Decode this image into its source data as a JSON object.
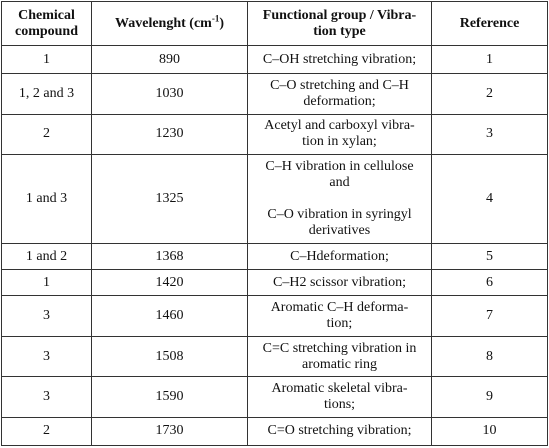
{
  "table": {
    "headers": {
      "compound_line1": "Chemical",
      "compound_line2": "compound",
      "wavelength": "Wavelenght (cm",
      "wavelength_sup": "-1",
      "wavelength_close": ")",
      "functional_line1": "Functional group / Vibra-",
      "functional_line2": "tion type",
      "reference": "Reference"
    },
    "rows": [
      {
        "compound": "1",
        "wavelength": "890",
        "functional": [
          "C–OH stretching vibration;"
        ],
        "reference": "1"
      },
      {
        "compound": "1, 2 and 3",
        "wavelength": "1030",
        "functional": [
          "C–O stretching and C–H",
          "deformation;"
        ],
        "reference": "2"
      },
      {
        "compound": "2",
        "wavelength": "1230",
        "functional": [
          "Acetyl and carboxyl vibra-",
          "tion in xylan;"
        ],
        "reference": "3"
      },
      {
        "compound": "1 and 3",
        "wavelength": "1325",
        "functional": [
          "C–H vibration in cellulose",
          "and",
          "",
          "C–O vibration in syringyl",
          "derivatives"
        ],
        "reference": "4"
      },
      {
        "compound": "1 and 2",
        "wavelength": "1368",
        "functional": [
          "C–Hdeformation;"
        ],
        "reference": "5"
      },
      {
        "compound": "1",
        "wavelength": "1420",
        "functional": [
          "C–H2 scissor vibration;"
        ],
        "reference": "6"
      },
      {
        "compound": "3",
        "wavelength": "1460",
        "functional": [
          "Aromatic C–H deforma-",
          "tion;"
        ],
        "reference": "7"
      },
      {
        "compound": "3",
        "wavelength": "1508",
        "functional": [
          "C=C stretching vibration in",
          "aromatic ring"
        ],
        "reference": "8"
      },
      {
        "compound": "3",
        "wavelength": "1590",
        "functional": [
          "Aromatic  skeletal vibra-",
          "tions;"
        ],
        "reference": "9"
      },
      {
        "compound": "2",
        "wavelength": "1730",
        "functional": [
          "C=O stretching vibration;"
        ],
        "reference": "10"
      }
    ]
  }
}
